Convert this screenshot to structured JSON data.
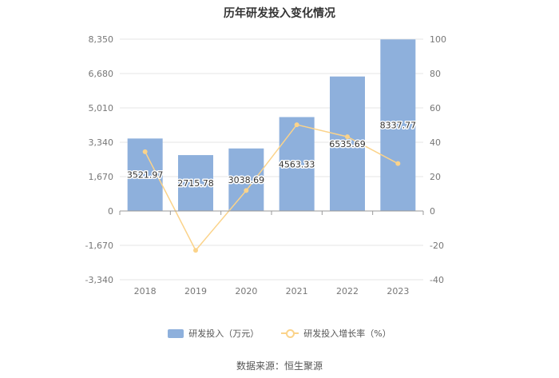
{
  "source_text": "数据来源：恒生聚源",
  "colors": {
    "bar": "#8eb0dc",
    "line": "#fbd38a",
    "grid": "#e6e6e6",
    "axis": "#999999"
  },
  "chart_data": {
    "type": "bar",
    "title": "历年研发投入变化情况",
    "categories": [
      "2018",
      "2019",
      "2020",
      "2021",
      "2022",
      "2023"
    ],
    "series": [
      {
        "name": "研发投入（万元）",
        "type": "bar",
        "axis": "left",
        "values": [
          3521.97,
          2715.78,
          3038.69,
          4563.33,
          6535.69,
          8337.77
        ]
      },
      {
        "name": "研发投入增长率（%）",
        "type": "line",
        "axis": "right",
        "values": [
          34.5,
          -22.9,
          11.9,
          50.2,
          43.2,
          27.6
        ]
      }
    ],
    "bar_labels": [
      "3521.97",
      "2715.78",
      "3038.69",
      "4563.33",
      "6535.69",
      "8337.77"
    ],
    "y_left": {
      "ylim": [
        -3340,
        8350
      ],
      "ticks": [
        8350,
        6680,
        5010,
        3340,
        1670,
        0,
        -1670,
        -3340
      ],
      "tick_labels": [
        "8,350",
        "6,680",
        "5,010",
        "3,340",
        "1,670",
        "0",
        "-1,670",
        "-3,340"
      ]
    },
    "y_right": {
      "ylim": [
        -40,
        100
      ],
      "ticks": [
        100,
        80,
        60,
        40,
        20,
        0,
        -20,
        -40
      ],
      "tick_labels": [
        "100",
        "80",
        "60",
        "40",
        "20",
        "0",
        "-20",
        "-40"
      ]
    },
    "grid": true,
    "legend_position": "bottom"
  }
}
